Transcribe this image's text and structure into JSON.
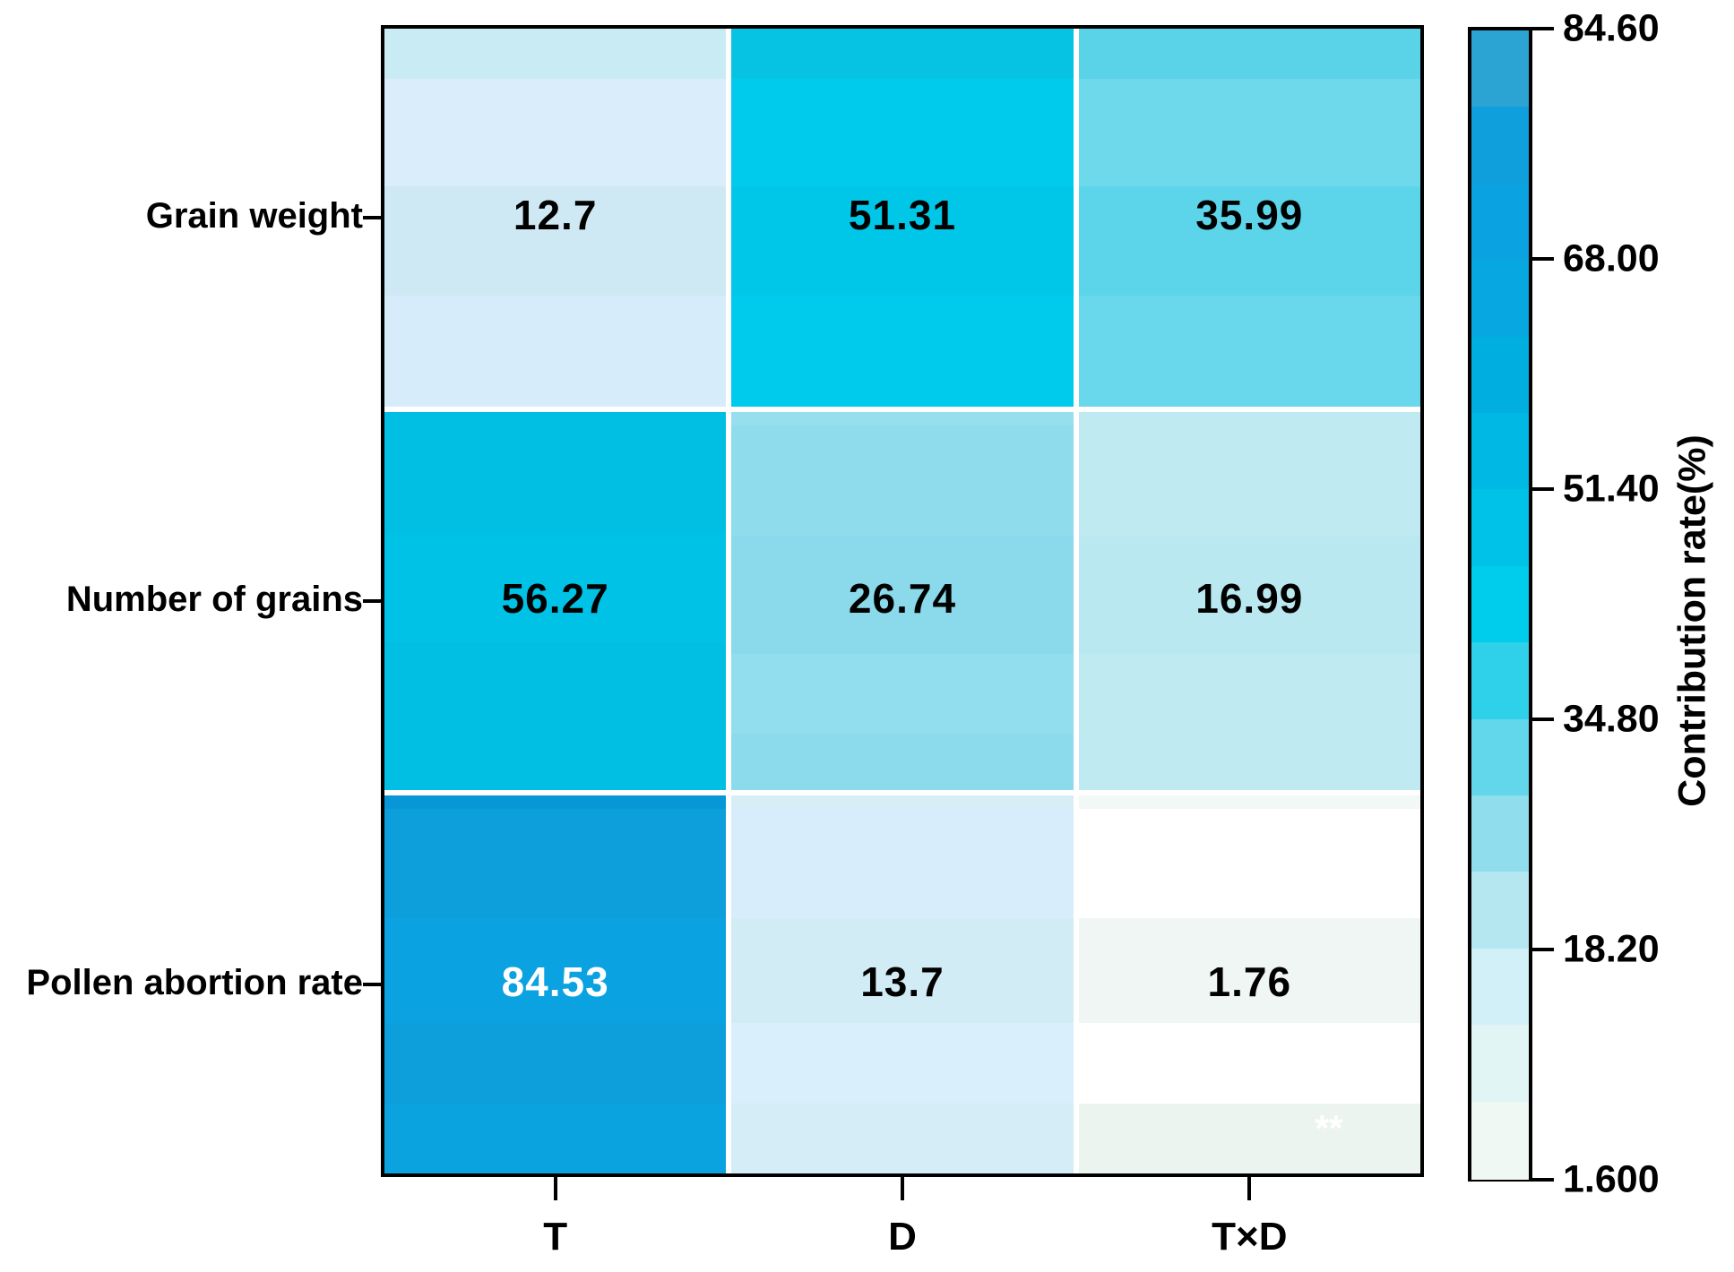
{
  "chart_data": {
    "type": "heatmap",
    "rows": [
      "Grain weight",
      "Number of grains",
      "Pollen abortion rate"
    ],
    "columns": [
      "T",
      "D",
      "T×D"
    ],
    "values": [
      [
        12.7,
        51.31,
        35.99
      ],
      [
        56.27,
        26.74,
        16.99
      ],
      [
        84.53,
        13.7,
        1.76
      ]
    ],
    "value_labels": [
      [
        "12.7",
        "51.31",
        "35.99"
      ],
      [
        "56.27",
        "26.74",
        "16.99"
      ],
      [
        "84.53",
        "13.7",
        "1.76"
      ]
    ],
    "value_text_colors": [
      [
        "#000000",
        "#000000",
        "#000000"
      ],
      [
        "#000000",
        "#000000",
        "#000000"
      ],
      [
        "#ffffff",
        "#000000",
        "#000000"
      ]
    ],
    "annotation": {
      "text": "**",
      "color": "#ffffff",
      "row": 2,
      "col": 2
    },
    "grid": "white-separators",
    "legend_position": "right",
    "colorbar": {
      "label": "Contribution rate(%)",
      "ticks": [
        "84.60",
        "68.00",
        "51.40",
        "34.80",
        "18.20",
        "1.600"
      ],
      "max": 84.6,
      "min": 1.6,
      "stops_top_to_bottom": [
        "#2ca4d3",
        "#0f9fdd",
        "#0aa2e0",
        "#07a7e2",
        "#00afe0",
        "#00b8e4",
        "#00c2e8",
        "#00ccec",
        "#2fd0ea",
        "#62d6eb",
        "#90dded",
        "#b5e7f1",
        "#d2f0f7",
        "#e2f5f5",
        "#eff8f3"
      ]
    },
    "cell_stripes": [
      [
        [
          {
            "f": 0.133,
            "c": "#c9ecf4"
          },
          {
            "f": 0.285,
            "c": "#d9edfa"
          },
          {
            "f": 0.287,
            "c": "#cfe9f4"
          },
          {
            "f": 0.295,
            "c": "#d7ecfa"
          }
        ],
        [
          {
            "f": 0.133,
            "c": "#06c3e3"
          },
          {
            "f": 0.285,
            "c": "#00cbec"
          },
          {
            "f": 0.287,
            "c": "#00c7e7"
          },
          {
            "f": 0.295,
            "c": "#00cbec"
          }
        ],
        [
          {
            "f": 0.133,
            "c": "#5ad2e8"
          },
          {
            "f": 0.285,
            "c": "#6fd9ec"
          },
          {
            "f": 0.287,
            "c": "#5cd4e9"
          },
          {
            "f": 0.295,
            "c": "#69d7ec"
          }
        ]
      ],
      [
        [
          {
            "f": 0.32,
            "c": "#00bfe3"
          },
          {
            "f": 0.29,
            "c": "#00c2e6"
          },
          {
            "f": 0.39,
            "c": "#00bfe3"
          }
        ],
        [
          {
            "f": 0.035,
            "c": "#97dfee"
          },
          {
            "f": 0.295,
            "c": "#8edcec"
          },
          {
            "f": 0.31,
            "c": "#8adaeb"
          },
          {
            "f": 0.21,
            "c": "#92deee"
          },
          {
            "f": 0.15,
            "c": "#8cdbec"
          }
        ],
        [
          {
            "f": 0.33,
            "c": "#bfeaf2"
          },
          {
            "f": 0.31,
            "c": "#b9e8f0"
          },
          {
            "f": 0.36,
            "c": "#bfeaf2"
          }
        ]
      ],
      [
        [
          {
            "f": 0.035,
            "c": "#0797d6"
          },
          {
            "f": 0.289,
            "c": "#0c9fdc"
          },
          {
            "f": 0.279,
            "c": "#0aa2e0"
          },
          {
            "f": 0.213,
            "c": "#0c9fdc"
          },
          {
            "f": 0.184,
            "c": "#0aa3e0"
          }
        ],
        [
          {
            "f": 0.035,
            "c": "#d8eef6"
          },
          {
            "f": 0.289,
            "c": "#d8edfb"
          },
          {
            "f": 0.279,
            "c": "#d2ecf6"
          },
          {
            "f": 0.213,
            "c": "#d9effb"
          },
          {
            "f": 0.184,
            "c": "#d4edf7"
          }
        ],
        [
          {
            "f": 0.035,
            "c": "#f2f8f5"
          },
          {
            "f": 0.289,
            "c": "#ffffff"
          },
          {
            "f": 0.279,
            "c": "#f0f6f3"
          },
          {
            "f": 0.213,
            "c": "#ffffff"
          },
          {
            "f": 0.184,
            "c": "#ecf4f0"
          }
        ]
      ]
    ]
  }
}
